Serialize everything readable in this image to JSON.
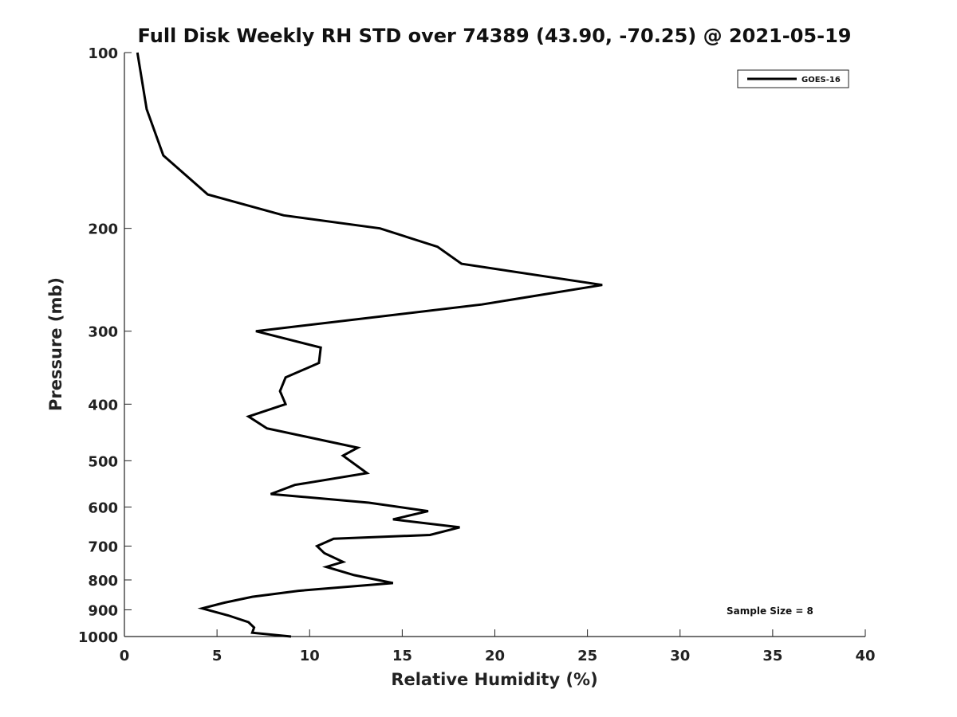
{
  "chart_data": {
    "type": "line",
    "title": "Full Disk Weekly RH STD over 74389 (43.90, -70.25) @ 2021-05-19",
    "xlabel": "Relative Humidity (%)",
    "ylabel": "Pressure (mb)",
    "xlim": [
      0,
      40
    ],
    "ylim": [
      100,
      1000
    ],
    "y_scale": "log",
    "y_inverted": true,
    "x_ticks": [
      "0",
      "5",
      "10",
      "15",
      "20",
      "25",
      "30",
      "35",
      "40"
    ],
    "y_ticks": [
      "100",
      "200",
      "300",
      "400",
      "500",
      "600",
      "700",
      "800",
      "900",
      "1000"
    ],
    "grid": false,
    "legend_position": "top-right",
    "annotation": "Sample Size = 8",
    "series": [
      {
        "name": "GOES-16",
        "color": "#000000",
        "points": [
          [
            0.7,
            100
          ],
          [
            1.2,
            125
          ],
          [
            2.1,
            150
          ],
          [
            4.5,
            175
          ],
          [
            8.6,
            190
          ],
          [
            13.8,
            200
          ],
          [
            16.9,
            215
          ],
          [
            18.2,
            230
          ],
          [
            25.8,
            250
          ],
          [
            19.3,
            270
          ],
          [
            7.1,
            300
          ],
          [
            10.6,
            320
          ],
          [
            10.5,
            340
          ],
          [
            8.7,
            360
          ],
          [
            8.4,
            380
          ],
          [
            8.7,
            400
          ],
          [
            6.7,
            420
          ],
          [
            7.7,
            440
          ],
          [
            12.6,
            475
          ],
          [
            11.8,
            490
          ],
          [
            13.1,
            525
          ],
          [
            9.2,
            550
          ],
          [
            7.9,
            570
          ],
          [
            13.2,
            590
          ],
          [
            16.4,
            610
          ],
          [
            14.5,
            630
          ],
          [
            18.1,
            650
          ],
          [
            16.5,
            670
          ],
          [
            11.3,
            680
          ],
          [
            10.4,
            700
          ],
          [
            10.8,
            720
          ],
          [
            11.8,
            745
          ],
          [
            10.9,
            760
          ],
          [
            12.4,
            785
          ],
          [
            14.5,
            810
          ],
          [
            9.4,
            835
          ],
          [
            6.9,
            855
          ],
          [
            5.4,
            875
          ],
          [
            4.2,
            895
          ],
          [
            5.6,
            920
          ],
          [
            6.7,
            945
          ],
          [
            7.0,
            965
          ],
          [
            6.9,
            985
          ],
          [
            9.0,
            1000
          ]
        ]
      }
    ]
  }
}
